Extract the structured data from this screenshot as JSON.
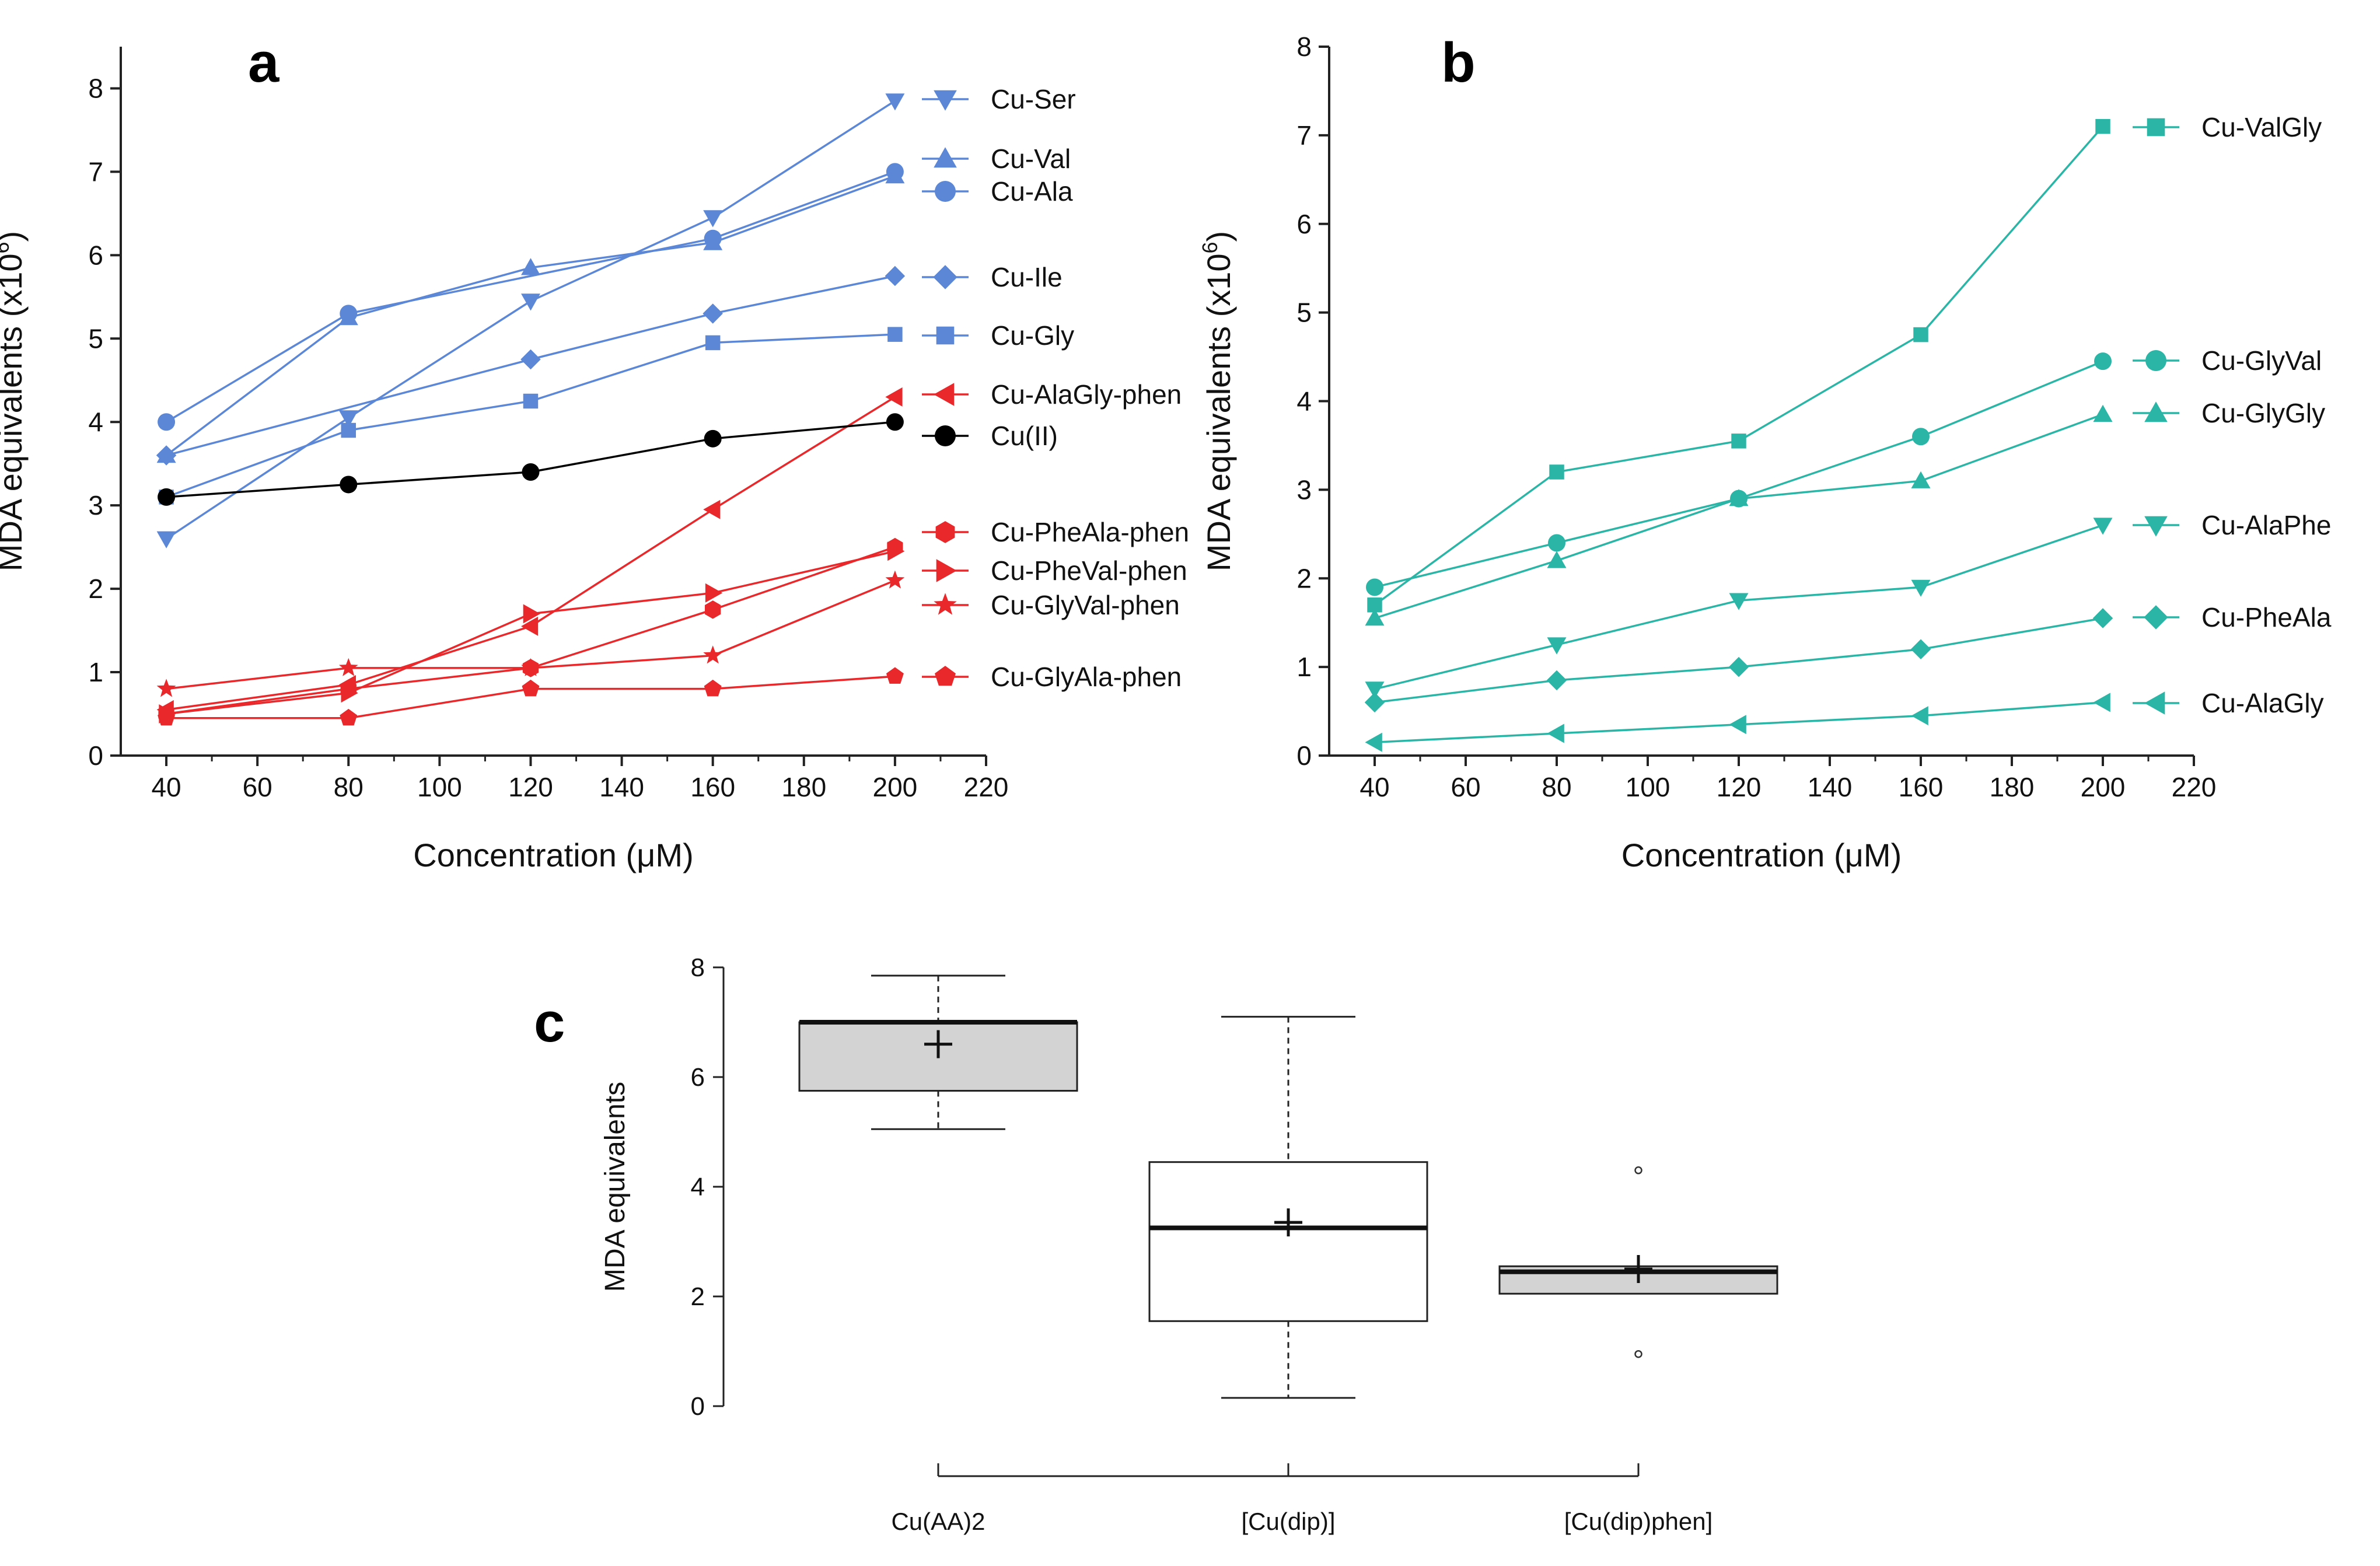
{
  "chart_data": [
    {
      "panel": "a",
      "type": "line",
      "xlabel": "Concentration (μM)",
      "ylabel_main": "MDA equivalents (x10",
      "ylabel_sup": "6",
      "ylabel_end": ")",
      "xlim": [
        30,
        220
      ],
      "ylim": [
        0,
        8.5
      ],
      "xticks": [
        40,
        60,
        80,
        100,
        120,
        140,
        160,
        180,
        200,
        220
      ],
      "yticks": [
        0,
        1,
        2,
        3,
        4,
        5,
        6,
        7,
        8
      ],
      "legend_position": "right",
      "series": [
        {
          "name": "Cu-Ser",
          "marker": "triangle-down",
          "color": "#5b87d6",
          "x": [
            40,
            80,
            120,
            160,
            200
          ],
          "y": [
            2.6,
            4.05,
            5.45,
            6.45,
            7.85
          ]
        },
        {
          "name": "Cu-Val",
          "marker": "triangle-up",
          "color": "#5b87d6",
          "x": [
            40,
            80,
            120,
            160,
            200
          ],
          "y": [
            3.6,
            5.25,
            5.85,
            6.15,
            6.95
          ]
        },
        {
          "name": "Cu-Ala",
          "marker": "circle",
          "color": "#5b87d6",
          "x": [
            40,
            80,
            120,
            160,
            200
          ],
          "y": [
            4.0,
            5.3,
            null,
            6.2,
            7.0
          ]
        },
        {
          "name": "Cu-Ile",
          "marker": "diamond",
          "color": "#5b87d6",
          "x": [
            40,
            80,
            120,
            160,
            200
          ],
          "y": [
            3.6,
            null,
            4.75,
            5.3,
            5.75
          ]
        },
        {
          "name": "Cu-Gly",
          "marker": "square",
          "color": "#5b87d6",
          "x": [
            40,
            80,
            120,
            160,
            200
          ],
          "y": [
            3.1,
            3.9,
            4.25,
            4.95,
            5.05
          ]
        },
        {
          "name": "Cu-AlaGly-phen",
          "marker": "triangle-left",
          "color": "#e8282b",
          "x": [
            40,
            80,
            120,
            160,
            200
          ],
          "y": [
            0.55,
            0.85,
            1.55,
            2.95,
            4.3
          ]
        },
        {
          "name": "Cu(II)",
          "marker": "circle",
          "color": "#000000",
          "x": [
            40,
            80,
            120,
            160,
            200
          ],
          "y": [
            3.1,
            3.25,
            3.4,
            3.8,
            4.0
          ]
        },
        {
          "name": "Cu-PheAla-phen",
          "marker": "hexagon",
          "color": "#e8282b",
          "x": [
            40,
            80,
            120,
            160,
            200
          ],
          "y": [
            0.5,
            0.8,
            1.05,
            1.75,
            2.5
          ]
        },
        {
          "name": "Cu-PheVal-phen",
          "marker": "triangle-right",
          "color": "#e8282b",
          "x": [
            40,
            80,
            120,
            160,
            200
          ],
          "y": [
            0.5,
            0.75,
            1.7,
            1.95,
            2.45
          ]
        },
        {
          "name": "Cu-GlyVal-phen",
          "marker": "star",
          "color": "#e8282b",
          "x": [
            40,
            80,
            120,
            160,
            200
          ],
          "y": [
            0.8,
            1.05,
            1.05,
            1.2,
            2.1
          ]
        },
        {
          "name": "Cu-GlyAla-phen",
          "marker": "pentagon",
          "color": "#e8282b",
          "x": [
            40,
            80,
            120,
            160,
            200
          ],
          "y": [
            0.45,
            0.45,
            0.8,
            0.8,
            0.95
          ]
        }
      ]
    },
    {
      "panel": "b",
      "type": "line",
      "xlabel": "Concentration (μM)",
      "ylabel_main": "MDA equivalents (x10",
      "ylabel_sup": "6",
      "ylabel_end": ")",
      "xlim": [
        30,
        220
      ],
      "ylim": [
        0,
        8
      ],
      "xticks": [
        40,
        60,
        80,
        100,
        120,
        140,
        160,
        180,
        200,
        220
      ],
      "yticks": [
        0,
        1,
        2,
        3,
        4,
        5,
        6,
        7,
        8
      ],
      "legend_position": "right",
      "series": [
        {
          "name": "Cu-ValGly",
          "marker": "square",
          "color": "#2bb5a6",
          "x": [
            40,
            80,
            120,
            160,
            200
          ],
          "y": [
            1.7,
            3.2,
            3.55,
            4.75,
            7.1
          ]
        },
        {
          "name": "Cu-GlyVal",
          "marker": "circle",
          "color": "#2bb5a6",
          "x": [
            40,
            80,
            120,
            160,
            200
          ],
          "y": [
            1.9,
            2.4,
            2.9,
            3.6,
            4.45
          ]
        },
        {
          "name": "Cu-GlyGly",
          "marker": "triangle-up",
          "color": "#2bb5a6",
          "x": [
            40,
            80,
            120,
            160,
            200
          ],
          "y": [
            1.55,
            2.2,
            2.9,
            3.1,
            3.85
          ]
        },
        {
          "name": "Cu-AlaPhe",
          "marker": "triangle-down",
          "color": "#2bb5a6",
          "x": [
            40,
            80,
            120,
            160,
            200
          ],
          "y": [
            0.75,
            1.25,
            1.75,
            1.9,
            2.6
          ]
        },
        {
          "name": "Cu-PheAla",
          "marker": "diamond",
          "color": "#2bb5a6",
          "x": [
            40,
            80,
            120,
            160,
            200
          ],
          "y": [
            0.6,
            0.85,
            1.0,
            1.2,
            1.55
          ]
        },
        {
          "name": "Cu-AlaGly",
          "marker": "triangle-left",
          "color": "#2bb5a6",
          "x": [
            40,
            80,
            120,
            160,
            200
          ],
          "y": [
            0.15,
            0.25,
            0.35,
            0.45,
            0.6
          ]
        }
      ]
    },
    {
      "panel": "c",
      "type": "box",
      "ylabel": "MDA equivalents",
      "ylim": [
        0,
        8
      ],
      "yticks": [
        0,
        2,
        4,
        6,
        8
      ],
      "categories": [
        "Cu(AA)2",
        "[Cu(dip)]",
        "[Cu(dip)phen]"
      ],
      "boxes": [
        {
          "name": "Cu(AA)2",
          "fill": "#d3d3d3",
          "whisker_low": 5.05,
          "q1": 5.75,
          "median": 7.0,
          "q3": 7.0,
          "whisker_high": 7.85,
          "mean": 6.6,
          "outliers": []
        },
        {
          "name": "[Cu(dip)]",
          "fill": "#ffffff",
          "whisker_low": 0.15,
          "q1": 1.55,
          "median": 3.25,
          "q3": 4.45,
          "whisker_high": 7.1,
          "mean": 3.35,
          "outliers": []
        },
        {
          "name": "[Cu(dip)phen]",
          "fill": "#d3d3d3",
          "whisker_low": null,
          "q1": 2.05,
          "median": 2.45,
          "q3": 2.55,
          "whisker_high": null,
          "mean": 2.5,
          "outliers": [
            0.95,
            4.3
          ]
        }
      ]
    }
  ],
  "panels": {
    "a": {
      "letter": "a"
    },
    "b": {
      "letter": "b"
    },
    "c": {
      "letter": "c"
    }
  }
}
